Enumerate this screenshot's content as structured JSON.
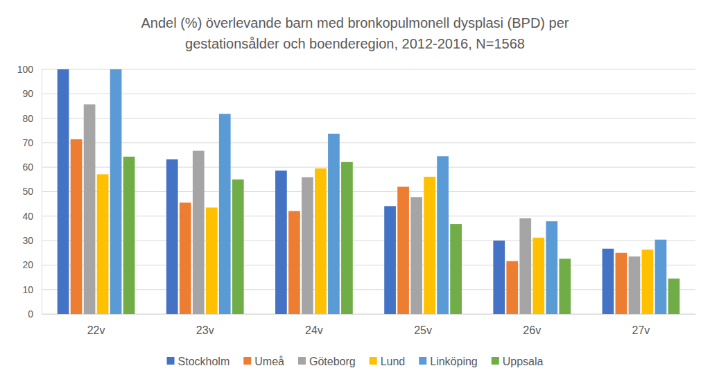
{
  "chart_data": {
    "type": "bar",
    "title": "Andel (%) överlevande barn med bronkopulmonell dysplasi (BPD) per gestationsålder och boenderegion, 2012-2016, N=1568",
    "categories": [
      "22v",
      "23v",
      "24v",
      "25v",
      "26v",
      "27v"
    ],
    "series": [
      {
        "name": "Stockholm",
        "color": "#4472c4",
        "values": [
          100,
          63.2,
          58.6,
          44.1,
          30.0,
          26.7
        ]
      },
      {
        "name": "Umeå",
        "color": "#ed7d31",
        "values": [
          71.4,
          45.5,
          42.1,
          52.0,
          21.6,
          25.0
        ]
      },
      {
        "name": "Göteborg",
        "color": "#a5a5a5",
        "values": [
          85.7,
          66.7,
          55.9,
          47.8,
          39.1,
          23.5
        ]
      },
      {
        "name": "Lund",
        "color": "#ffc000",
        "values": [
          57.1,
          43.5,
          59.5,
          56.1,
          31.2,
          26.3
        ]
      },
      {
        "name": "Linköping",
        "color": "#5b9bd5",
        "values": [
          100,
          81.8,
          73.7,
          64.5,
          37.9,
          30.4
        ]
      },
      {
        "name": "Uppsala",
        "color": "#70ad47",
        "values": [
          64.3,
          55.0,
          62.1,
          36.8,
          22.6,
          14.5
        ]
      }
    ],
    "ylim": [
      0,
      100
    ],
    "yticks": [
      0,
      10,
      20,
      30,
      40,
      50,
      60,
      70,
      80,
      90,
      100
    ],
    "grid": true,
    "legend": "bottom"
  }
}
